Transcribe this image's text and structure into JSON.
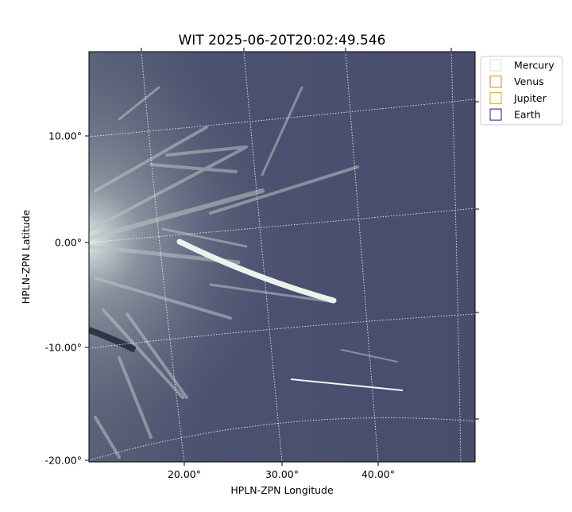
{
  "title": "WIT 2025-06-20T20:02:49.546",
  "x_axis": {
    "label": "HPLN-ZPN Longitude",
    "ticks": [
      "20.00°",
      "30.00°",
      "40.00°"
    ]
  },
  "y_axis": {
    "label": "HPLN-ZPN Latitude",
    "ticks": [
      "10.00°",
      "0.00°",
      "-10.00°",
      "-20.00°"
    ]
  },
  "legend": {
    "items": [
      {
        "label": "Mercury",
        "color": "#dddddd"
      },
      {
        "label": "Venus",
        "color": "#e07b39"
      },
      {
        "label": "Jupiter",
        "color": "#e0a800"
      },
      {
        "label": "Earth",
        "color": "#1a1a7a"
      }
    ]
  }
}
